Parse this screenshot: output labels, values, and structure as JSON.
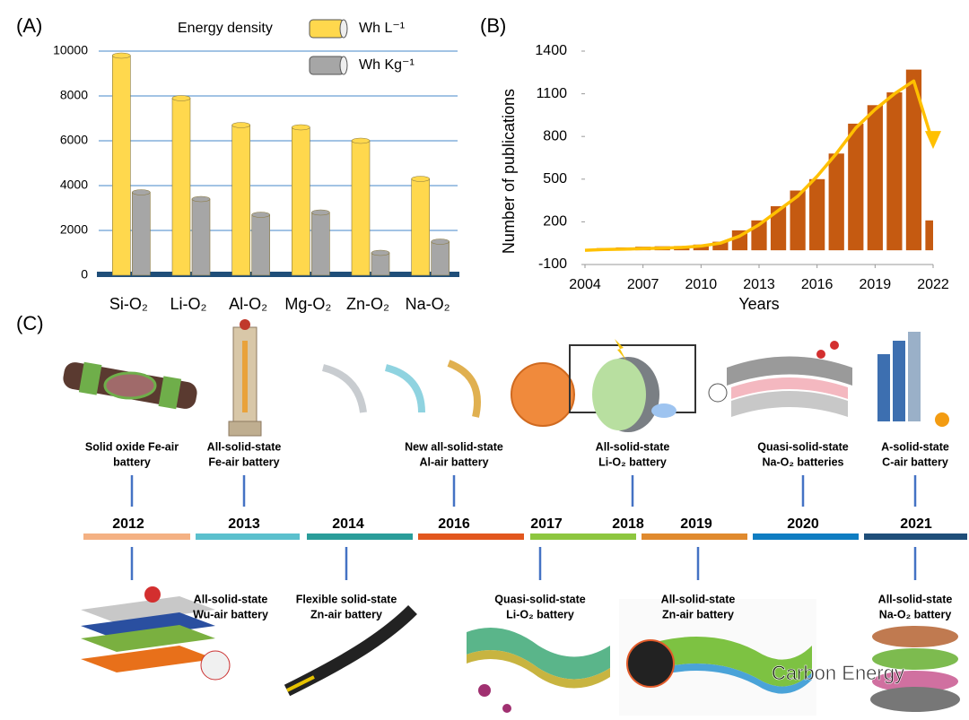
{
  "chart_data": [
    {
      "type": "bar",
      "label": "(A)",
      "legend_title": "Energy density",
      "categories": [
        "Si-O₂",
        "Li-O₂",
        "Al-O₂",
        "Mg-O₂",
        "Zn-O₂",
        "Na-O₂"
      ],
      "series": [
        {
          "name": "Wh L⁻¹",
          "color": "#ffd84d",
          "values": [
            9800,
            7900,
            6700,
            6600,
            6000,
            4300
          ]
        },
        {
          "name": "Wh Kg⁻¹",
          "color": "#a6a6a6",
          "values": [
            3700,
            3400,
            2700,
            2800,
            1000,
            1500
          ]
        }
      ],
      "ylim": [
        0,
        10000
      ],
      "yticks": [
        0,
        2000,
        4000,
        6000,
        8000,
        10000
      ],
      "grid": true
    },
    {
      "type": "combo",
      "label": "(B)",
      "xlabel": "Years",
      "ylabel": "Number of publications",
      "x": [
        2004,
        2005,
        2006,
        2007,
        2008,
        2009,
        2010,
        2011,
        2012,
        2013,
        2014,
        2015,
        2016,
        2017,
        2018,
        2019,
        2020,
        2021,
        2022
      ],
      "series": [
        {
          "type": "bar",
          "color": "#c55a11",
          "values": [
            10,
            15,
            20,
            25,
            28,
            30,
            40,
            60,
            140,
            210,
            310,
            420,
            500,
            680,
            890,
            1020,
            1110,
            1270,
            210
          ]
        },
        {
          "type": "line",
          "color": "#ffc000",
          "values": [
            0,
            5,
            8,
            12,
            15,
            20,
            30,
            50,
            100,
            180,
            280,
            380,
            520,
            680,
            860,
            990,
            1100,
            1190,
            750
          ]
        }
      ],
      "xlim": [
        2004,
        2022
      ],
      "xticks": [
        2004,
        2007,
        2010,
        2013,
        2016,
        2019,
        2022
      ],
      "ylim": [
        -100,
        1400
      ],
      "yticks": [
        -100,
        200,
        500,
        800,
        1100,
        1400
      ],
      "grid": false
    }
  ],
  "timeline": {
    "label": "(C)",
    "segments": [
      {
        "color": "#f4b183",
        "years": [
          {
            "year": "2012",
            "above": [
              "Solid oxide Fe-air",
              "battery"
            ],
            "below": [
              "All-solid-state",
              "Wu-air battery"
            ]
          }
        ]
      },
      {
        "color": "#5bc0cd",
        "years": [
          {
            "year": "2013",
            "above": [
              "All-solid-state",
              "Fe-air battery"
            ]
          }
        ]
      },
      {
        "color": "#2a9d9a",
        "years": [
          {
            "year": "2014",
            "below": [
              "Flexible solid-state",
              "Zn-air battery"
            ]
          }
        ]
      },
      {
        "color": "#e2571e",
        "years": [
          {
            "year": "2016",
            "above": [
              "New all-solid-state",
              "Al-air battery"
            ]
          }
        ]
      },
      {
        "color": "#8dc63f",
        "years": [
          {
            "year": "2017",
            "below": [
              "Quasi-solid-state",
              "Li-O₂ battery"
            ]
          },
          {
            "year": "2018",
            "above": [
              "All-solid-state",
              "Li-O₂ battery"
            ]
          }
        ]
      },
      {
        "color": "#e08a2e",
        "years": [
          {
            "year": "2019",
            "below": [
              "All-solid-state",
              "Zn-air battery"
            ]
          }
        ]
      },
      {
        "color": "#0f7dc2",
        "years": [
          {
            "year": "2020",
            "above": [
              "Quasi-solid-state",
              "Na-O₂ batteries"
            ]
          }
        ]
      },
      {
        "color": "#1f4e79",
        "years": [
          {
            "year": "2021",
            "above": [
              "A-solid-state",
              "C-air battery"
            ],
            "below": [
              "All-solid-state",
              "Na-O₂ battery"
            ]
          }
        ]
      }
    ],
    "watermark": "Carbon Energy"
  }
}
